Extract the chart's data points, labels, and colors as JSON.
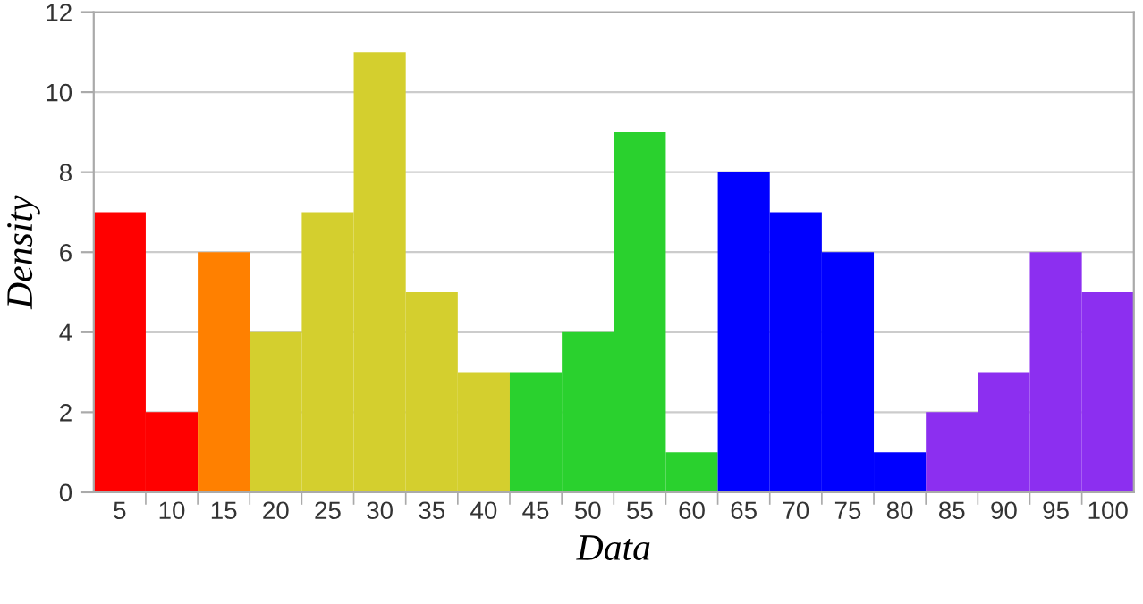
{
  "chart_data": {
    "type": "bar",
    "xlabel": "Data",
    "ylabel": "Density",
    "categories": [
      "5",
      "10",
      "15",
      "20",
      "25",
      "30",
      "35",
      "40",
      "45",
      "50",
      "55",
      "60",
      "65",
      "70",
      "75",
      "80",
      "85",
      "90",
      "95",
      "100"
    ],
    "values": [
      7,
      2,
      6,
      4,
      7,
      11,
      5,
      3,
      3,
      4,
      9,
      1,
      8,
      7,
      6,
      1,
      2,
      3,
      6,
      5
    ],
    "colors": [
      "#ff0000",
      "#ff0000",
      "#ff8000",
      "#d4cf2e",
      "#d4cf2e",
      "#d4cf2e",
      "#d4cf2e",
      "#d4cf2e",
      "#2ad12e",
      "#2ad12e",
      "#2ad12e",
      "#2ad12e",
      "#0000ff",
      "#0000ff",
      "#0000ff",
      "#0000ff",
      "#8c2ff0",
      "#8c2ff0",
      "#8c2ff0",
      "#8c2ff0"
    ],
    "ylim": [
      0,
      12
    ],
    "yticks": [
      0,
      2,
      4,
      6,
      8,
      10,
      12
    ],
    "grid": "y",
    "legend": false
  }
}
